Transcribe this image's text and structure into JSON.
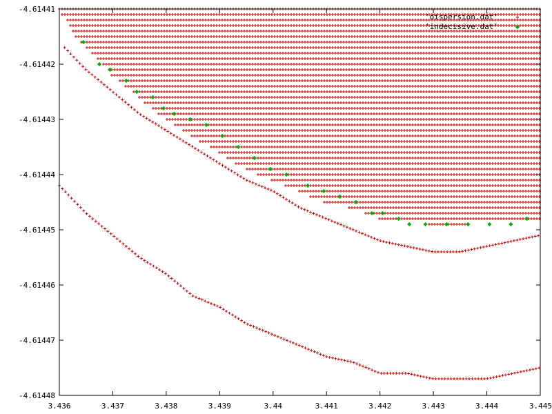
{
  "chart_data": {
    "type": "scatter",
    "title": "",
    "xlabel": "",
    "ylabel": "",
    "xlim": [
      3.436,
      3.445
    ],
    "ylim": [
      -4.61448,
      -4.61441
    ],
    "grid": false,
    "legend_position": "top-right",
    "x_ticks": [
      "3.436",
      "3.437",
      "3.438",
      "3.439",
      "3.44",
      "3.441",
      "3.442",
      "3.443",
      "3.444",
      "3.445"
    ],
    "y_ticks": [
      "-4.61441",
      "-4.61442",
      "-4.61443",
      "-4.61444",
      "-4.61445",
      "-4.61446",
      "-4.61447",
      "-4.61448"
    ],
    "series": [
      {
        "name": "'dispersion.dat'",
        "color": "#cc0000",
        "marker": "plus",
        "description_levels": {
          "grid_rows_y": [
            -4.61441,
            -4.614411,
            -4.614412,
            -4.614413,
            -4.614414,
            -4.614415,
            -4.614416,
            -4.614417,
            -4.614418,
            -4.614419,
            -4.61442,
            -4.614421,
            -4.614422,
            -4.614423,
            -4.614424,
            -4.614425,
            -4.614426,
            -4.614427,
            -4.614428,
            -4.614429,
            -4.61443,
            -4.614431,
            -4.614432,
            -4.614433,
            -4.614434,
            -4.614435,
            -4.614436,
            -4.614437,
            -4.614438,
            -4.614439,
            -4.61444,
            -4.614441,
            -4.614442,
            -4.614443,
            -4.614444,
            -4.614445,
            -4.614446,
            -4.614447,
            -4.614448,
            -4.614449,
            -4.61445
          ],
          "upper_boundary": [
            [
              3.436,
              -4.61441
            ],
            [
              3.4363,
              -4.614415
            ],
            [
              3.4366,
              -4.614418
            ],
            [
              3.437,
              -4.614422
            ],
            [
              3.4375,
              -4.614426
            ],
            [
              3.438,
              -4.61443
            ],
            [
              3.4385,
              -4.614433
            ],
            [
              3.439,
              -4.614436
            ],
            [
              3.4395,
              -4.614439
            ],
            [
              3.44,
              -4.614441
            ],
            [
              3.4405,
              -4.614443
            ],
            [
              3.441,
              -4.614445
            ],
            [
              3.4415,
              -4.614446
            ],
            [
              3.442,
              -4.614448
            ],
            [
              3.4425,
              -4.614448
            ],
            [
              3.443,
              -4.614449
            ],
            [
              3.4435,
              -4.614449
            ],
            [
              3.444,
              -4.614448
            ],
            [
              3.4445,
              -4.614448
            ],
            [
              3.445,
              -4.614448
            ]
          ],
          "middle_branch": [
            [
              3.4361,
              -4.614417
            ],
            [
              3.4365,
              -4.614421
            ],
            [
              3.437,
              -4.614425
            ],
            [
              3.4375,
              -4.614429
            ],
            [
              3.438,
              -4.614432
            ],
            [
              3.4385,
              -4.614435
            ],
            [
              3.439,
              -4.614438
            ],
            [
              3.4395,
              -4.614441
            ],
            [
              3.44,
              -4.614443
            ],
            [
              3.4405,
              -4.614446
            ],
            [
              3.441,
              -4.614448
            ],
            [
              3.4415,
              -4.61445
            ],
            [
              3.442,
              -4.614452
            ],
            [
              3.4425,
              -4.614453
            ],
            [
              3.443,
              -4.614454
            ],
            [
              3.4435,
              -4.614454
            ],
            [
              3.444,
              -4.614453
            ],
            [
              3.4445,
              -4.614452
            ],
            [
              3.445,
              -4.614451
            ]
          ],
          "lower_branch": [
            [
              3.436,
              -4.614442
            ],
            [
              3.4365,
              -4.614447
            ],
            [
              3.437,
              -4.614451
            ],
            [
              3.4375,
              -4.614455
            ],
            [
              3.438,
              -4.614458
            ],
            [
              3.4385,
              -4.614462
            ],
            [
              3.439,
              -4.614464
            ],
            [
              3.4395,
              -4.614467
            ],
            [
              3.44,
              -4.614469
            ],
            [
              3.4405,
              -4.614471
            ],
            [
              3.441,
              -4.614473
            ],
            [
              3.4415,
              -4.614474
            ],
            [
              3.442,
              -4.614476
            ],
            [
              3.4425,
              -4.614476
            ],
            [
              3.443,
              -4.614477
            ],
            [
              3.4435,
              -4.614477
            ],
            [
              3.444,
              -4.614477
            ],
            [
              3.4445,
              -4.614476
            ],
            [
              3.445,
              -4.614475
            ]
          ]
        }
      },
      {
        "name": "'indecisive.dat'",
        "color": "#00b000",
        "marker": "diamond",
        "points": [
          [
            3.43645,
            -4.614416
          ],
          [
            3.43675,
            -4.61442
          ],
          [
            3.43695,
            -4.614421
          ],
          [
            3.43725,
            -4.614423
          ],
          [
            3.43745,
            -4.614425
          ],
          [
            3.43775,
            -4.614426
          ],
          [
            3.43795,
            -4.614428
          ],
          [
            3.43815,
            -4.614429
          ],
          [
            3.43845,
            -4.61443
          ],
          [
            3.43875,
            -4.614431
          ],
          [
            3.43905,
            -4.614433
          ],
          [
            3.43935,
            -4.614435
          ],
          [
            3.43965,
            -4.614437
          ],
          [
            3.43995,
            -4.614439
          ],
          [
            3.44025,
            -4.61444
          ],
          [
            3.44065,
            -4.614442
          ],
          [
            3.44095,
            -4.614443
          ],
          [
            3.44125,
            -4.614444
          ],
          [
            3.44155,
            -4.614445
          ],
          [
            3.44185,
            -4.614447
          ],
          [
            3.44205,
            -4.614447
          ],
          [
            3.44235,
            -4.614448
          ],
          [
            3.44255,
            -4.614449
          ],
          [
            3.44285,
            -4.614449
          ],
          [
            3.44325,
            -4.614449
          ],
          [
            3.44365,
            -4.614449
          ],
          [
            3.44405,
            -4.614449
          ],
          [
            3.44445,
            -4.614449
          ],
          [
            3.44475,
            -4.614448
          ]
        ]
      }
    ]
  }
}
